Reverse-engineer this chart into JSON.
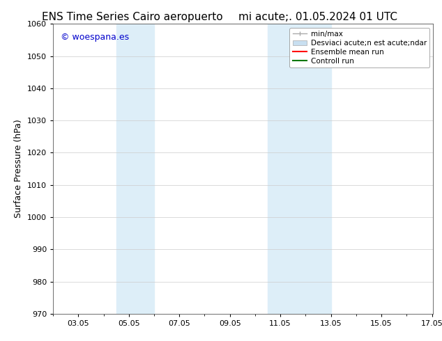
{
  "title_left": "ENS Time Series Cairo aeropuerto",
  "title_right": "mi acute;. 01.05.2024 01 UTC",
  "ylabel": "Surface Pressure (hPa)",
  "ylim": [
    970,
    1060
  ],
  "yticks": [
    970,
    980,
    990,
    1000,
    1010,
    1020,
    1030,
    1040,
    1050,
    1060
  ],
  "xlim": [
    2.0,
    17.05
  ],
  "xtick_labels": [
    "03.05",
    "05.05",
    "07.05",
    "09.05",
    "11.05",
    "13.05",
    "15.05",
    "17.05"
  ],
  "xtick_positions": [
    3,
    5,
    7,
    9,
    11,
    13,
    15,
    17
  ],
  "watermark": "© woespana.es",
  "watermark_color": "#0000cc",
  "background_color": "#ffffff",
  "plot_bg_color": "#ffffff",
  "shaded_regions": [
    {
      "xmin": 4.5,
      "xmax": 6.0,
      "color": "#ddeef8"
    },
    {
      "xmin": 10.5,
      "xmax": 13.0,
      "color": "#ddeef8"
    }
  ],
  "legend_items": [
    {
      "label": "min/max",
      "color": "#aaaaaa",
      "type": "errorbar"
    },
    {
      "label": "Desviaci acute;n est acute;ndar",
      "color": "#c8dff0",
      "type": "box"
    },
    {
      "label": "Ensemble mean run",
      "color": "#ff0000",
      "type": "line"
    },
    {
      "label": "Controll run",
      "color": "#007700",
      "type": "line"
    }
  ],
  "title_fontsize": 11,
  "tick_fontsize": 8,
  "legend_fontsize": 7.5,
  "watermark_fontsize": 9,
  "ylabel_fontsize": 9
}
